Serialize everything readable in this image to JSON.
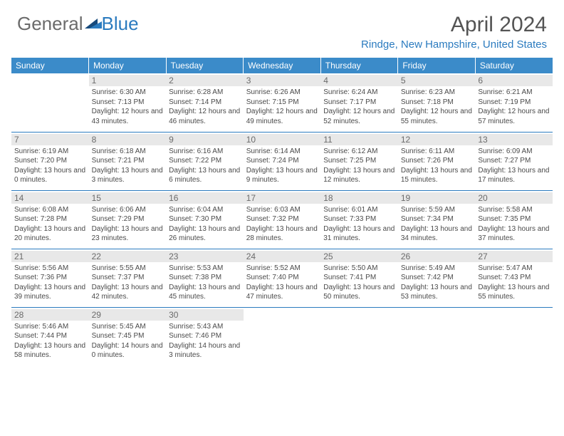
{
  "brand": {
    "part1": "General",
    "part2": "Blue"
  },
  "title": "April 2024",
  "location": "Rindge, New Hampshire, United States",
  "weekdays": [
    "Sunday",
    "Monday",
    "Tuesday",
    "Wednesday",
    "Thursday",
    "Friday",
    "Saturday"
  ],
  "colors": {
    "header_bg": "#3b8bc9",
    "accent": "#2b7bbf",
    "text": "#4a4a4a",
    "daynum_bg": "#e8e8e8",
    "daynum_text": "#6b6b6b",
    "page_bg": "#ffffff"
  },
  "days": [
    {
      "n": "1",
      "sunrise": "6:30 AM",
      "sunset": "7:13 PM",
      "daylight": "12 hours and 43 minutes."
    },
    {
      "n": "2",
      "sunrise": "6:28 AM",
      "sunset": "7:14 PM",
      "daylight": "12 hours and 46 minutes."
    },
    {
      "n": "3",
      "sunrise": "6:26 AM",
      "sunset": "7:15 PM",
      "daylight": "12 hours and 49 minutes."
    },
    {
      "n": "4",
      "sunrise": "6:24 AM",
      "sunset": "7:17 PM",
      "daylight": "12 hours and 52 minutes."
    },
    {
      "n": "5",
      "sunrise": "6:23 AM",
      "sunset": "7:18 PM",
      "daylight": "12 hours and 55 minutes."
    },
    {
      "n": "6",
      "sunrise": "6:21 AM",
      "sunset": "7:19 PM",
      "daylight": "12 hours and 57 minutes."
    },
    {
      "n": "7",
      "sunrise": "6:19 AM",
      "sunset": "7:20 PM",
      "daylight": "13 hours and 0 minutes."
    },
    {
      "n": "8",
      "sunrise": "6:18 AM",
      "sunset": "7:21 PM",
      "daylight": "13 hours and 3 minutes."
    },
    {
      "n": "9",
      "sunrise": "6:16 AM",
      "sunset": "7:22 PM",
      "daylight": "13 hours and 6 minutes."
    },
    {
      "n": "10",
      "sunrise": "6:14 AM",
      "sunset": "7:24 PM",
      "daylight": "13 hours and 9 minutes."
    },
    {
      "n": "11",
      "sunrise": "6:12 AM",
      "sunset": "7:25 PM",
      "daylight": "13 hours and 12 minutes."
    },
    {
      "n": "12",
      "sunrise": "6:11 AM",
      "sunset": "7:26 PM",
      "daylight": "13 hours and 15 minutes."
    },
    {
      "n": "13",
      "sunrise": "6:09 AM",
      "sunset": "7:27 PM",
      "daylight": "13 hours and 17 minutes."
    },
    {
      "n": "14",
      "sunrise": "6:08 AM",
      "sunset": "7:28 PM",
      "daylight": "13 hours and 20 minutes."
    },
    {
      "n": "15",
      "sunrise": "6:06 AM",
      "sunset": "7:29 PM",
      "daylight": "13 hours and 23 minutes."
    },
    {
      "n": "16",
      "sunrise": "6:04 AM",
      "sunset": "7:30 PM",
      "daylight": "13 hours and 26 minutes."
    },
    {
      "n": "17",
      "sunrise": "6:03 AM",
      "sunset": "7:32 PM",
      "daylight": "13 hours and 28 minutes."
    },
    {
      "n": "18",
      "sunrise": "6:01 AM",
      "sunset": "7:33 PM",
      "daylight": "13 hours and 31 minutes."
    },
    {
      "n": "19",
      "sunrise": "5:59 AM",
      "sunset": "7:34 PM",
      "daylight": "13 hours and 34 minutes."
    },
    {
      "n": "20",
      "sunrise": "5:58 AM",
      "sunset": "7:35 PM",
      "daylight": "13 hours and 37 minutes."
    },
    {
      "n": "21",
      "sunrise": "5:56 AM",
      "sunset": "7:36 PM",
      "daylight": "13 hours and 39 minutes."
    },
    {
      "n": "22",
      "sunrise": "5:55 AM",
      "sunset": "7:37 PM",
      "daylight": "13 hours and 42 minutes."
    },
    {
      "n": "23",
      "sunrise": "5:53 AM",
      "sunset": "7:38 PM",
      "daylight": "13 hours and 45 minutes."
    },
    {
      "n": "24",
      "sunrise": "5:52 AM",
      "sunset": "7:40 PM",
      "daylight": "13 hours and 47 minutes."
    },
    {
      "n": "25",
      "sunrise": "5:50 AM",
      "sunset": "7:41 PM",
      "daylight": "13 hours and 50 minutes."
    },
    {
      "n": "26",
      "sunrise": "5:49 AM",
      "sunset": "7:42 PM",
      "daylight": "13 hours and 53 minutes."
    },
    {
      "n": "27",
      "sunrise": "5:47 AM",
      "sunset": "7:43 PM",
      "daylight": "13 hours and 55 minutes."
    },
    {
      "n": "28",
      "sunrise": "5:46 AM",
      "sunset": "7:44 PM",
      "daylight": "13 hours and 58 minutes."
    },
    {
      "n": "29",
      "sunrise": "5:45 AM",
      "sunset": "7:45 PM",
      "daylight": "14 hours and 0 minutes."
    },
    {
      "n": "30",
      "sunrise": "5:43 AM",
      "sunset": "7:46 PM",
      "daylight": "14 hours and 3 minutes."
    }
  ],
  "labels": {
    "sunrise": "Sunrise: ",
    "sunset": "Sunset: ",
    "daylight": "Daylight: "
  },
  "layout": {
    "first_day_offset": 1,
    "weeks": 5
  }
}
